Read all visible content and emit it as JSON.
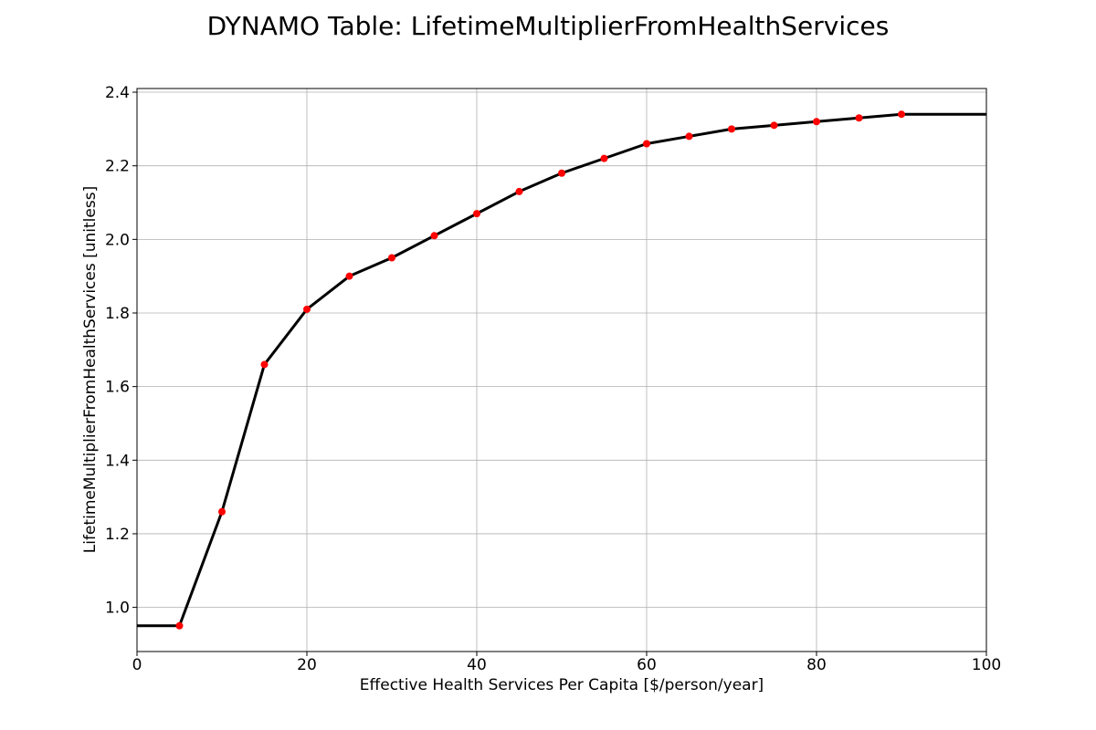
{
  "chart_data": {
    "type": "line",
    "title": "DYNAMO Table: LifetimeMultiplierFromHealthServices",
    "xlabel": "Effective Health Services Per Capita [$/person/year]",
    "ylabel": "LifetimeMultiplierFromHealthServices [unitless]",
    "xlim": [
      0,
      100
    ],
    "ylim": [
      0.88,
      2.41
    ],
    "xticks": [
      0,
      20,
      40,
      60,
      80,
      100
    ],
    "yticks": [
      1.0,
      1.2,
      1.4,
      1.6,
      1.8,
      2.0,
      2.2,
      2.4
    ],
    "grid": true,
    "line": {
      "color": "#000000",
      "x": [
        0,
        5,
        10,
        15,
        20,
        25,
        30,
        35,
        40,
        45,
        50,
        55,
        60,
        65,
        70,
        75,
        80,
        85,
        90,
        100
      ],
      "y": [
        0.95,
        0.95,
        1.26,
        1.66,
        1.81,
        1.9,
        1.95,
        2.01,
        2.07,
        2.13,
        2.18,
        2.22,
        2.26,
        2.28,
        2.3,
        2.31,
        2.32,
        2.33,
        2.34,
        2.34
      ]
    },
    "points": {
      "color": "#ff0000",
      "x": [
        5,
        10,
        15,
        20,
        25,
        30,
        35,
        40,
        45,
        50,
        55,
        60,
        65,
        70,
        75,
        80,
        85,
        90
      ],
      "y": [
        0.95,
        1.26,
        1.66,
        1.81,
        1.9,
        1.95,
        2.01,
        2.07,
        2.13,
        2.18,
        2.22,
        2.26,
        2.28,
        2.3,
        2.31,
        2.32,
        2.33,
        2.34
      ]
    }
  }
}
